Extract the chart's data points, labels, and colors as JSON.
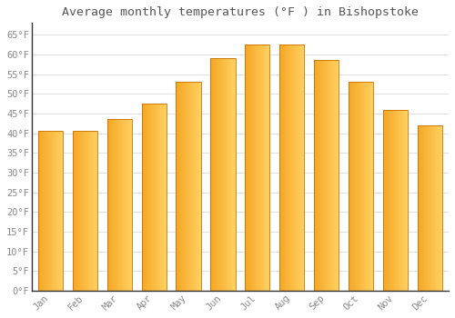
{
  "title": "Average monthly temperatures (°F ) in Bishopstoke",
  "months": [
    "Jan",
    "Feb",
    "Mar",
    "Apr",
    "May",
    "Jun",
    "Jul",
    "Aug",
    "Sep",
    "Oct",
    "Nov",
    "Dec"
  ],
  "values": [
    40.5,
    40.5,
    43.5,
    47.5,
    53.0,
    59.0,
    62.5,
    62.5,
    58.5,
    53.0,
    46.0,
    42.0
  ],
  "bar_color_left": "#F5A623",
  "bar_color_right": "#FFD060",
  "background_color": "#FFFFFF",
  "grid_color": "#E0E0E0",
  "title_color": "#555555",
  "tick_label_color": "#888888",
  "axis_line_color": "#333333",
  "ylim": [
    0,
    68
  ],
  "yticks": [
    0,
    5,
    10,
    15,
    20,
    25,
    30,
    35,
    40,
    45,
    50,
    55,
    60,
    65
  ],
  "ytick_labels": [
    "0°F",
    "5°F",
    "10°F",
    "15°F",
    "20°F",
    "25°F",
    "30°F",
    "35°F",
    "40°F",
    "45°F",
    "50°F",
    "55°F",
    "60°F",
    "65°F"
  ],
  "title_fontsize": 9.5,
  "tick_fontsize": 7.5,
  "bar_width": 0.72
}
